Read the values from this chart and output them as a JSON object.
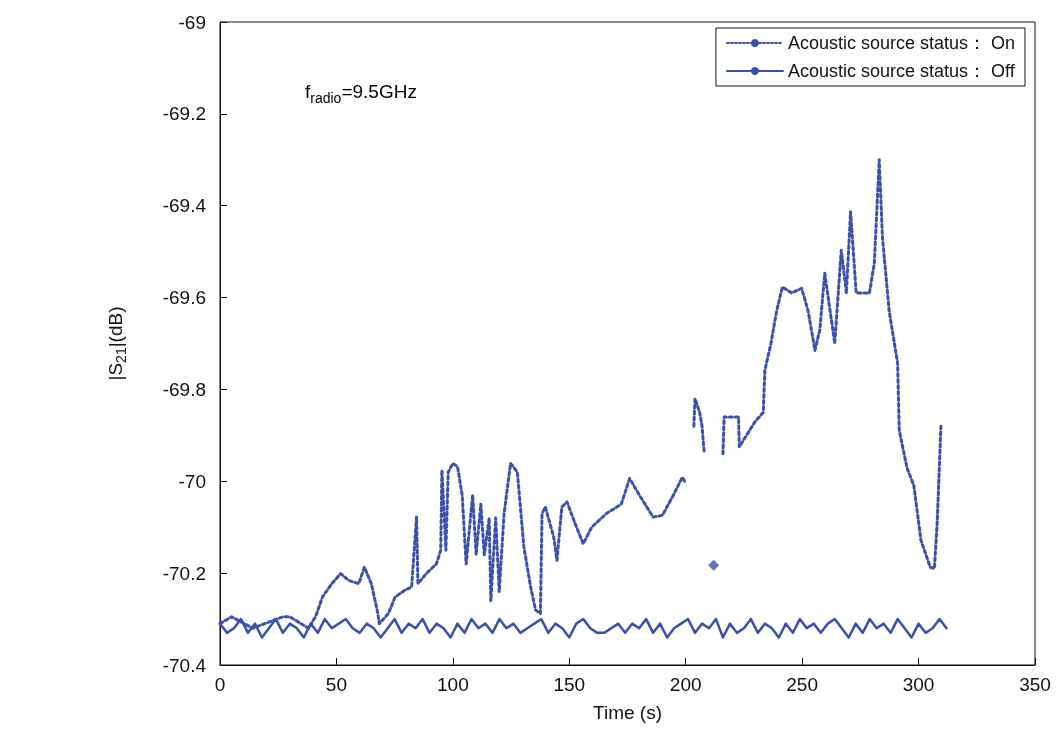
{
  "chart_data": {
    "type": "line",
    "xlabel": "Time (s)",
    "ylabel": "|S$_{21}$|(dB)",
    "annotations": [
      "f$_{radio}$=9.5GHz"
    ],
    "xlim": [
      0,
      350
    ],
    "xticks": [
      0,
      50,
      100,
      150,
      200,
      250,
      300,
      350
    ],
    "ylim": [
      -70.4,
      -69
    ],
    "yticks": [
      -70.4,
      -70.2,
      -70,
      -69.8,
      -69.6,
      -69.4,
      -69.2,
      -69
    ],
    "grid": false,
    "legend": "top right",
    "marker": "none",
    "series": [
      {
        "name": "Acoustic source status： On",
        "color": "#3b50aa",
        "line_style": "dotted",
        "x": [
          0,
          5,
          14,
          27,
          30,
          38,
          41,
          42.5,
          44,
          48,
          51.8,
          55.3,
          59.6,
          62,
          65,
          67.8,
          68.4,
          72.3,
          75.2,
          79.4,
          82.3,
          84.4,
          85,
          88.6,
          92.9,
          94.8,
          95.3,
          97,
          98,
          100,
          102,
          104,
          105.7,
          108.5,
          110,
          112,
          113.5,
          115.6,
          116.3,
          118.4,
          119.9,
          122,
          124.8,
          127.7,
          130.5,
          133.4,
          135.5,
          137.6,
          138.3,
          139.7,
          143.3,
          144.7,
          146.8,
          149,
          152.5,
          156,
          159.6,
          166,
          172.3,
          175.9,
          180.1,
          186,
          190,
          194.3,
          198.6,
          200,
          201,
          203.5,
          204,
          206,
          207,
          208,
          212,
          216,
          216.5,
          222.7,
          223,
          229.8,
          233.3,
          234,
          236.6,
          239,
          241.5,
          245.5,
          249.8,
          252.6,
          255.5,
          257.6,
          259.7,
          264,
          266.8,
          269,
          270.8,
          273.2,
          278.9,
          281,
          283.1,
          284.5,
          287.4,
          291,
          291.7,
          295,
          298,
          301,
          305,
          306.8,
          308,
          309.6
        ],
        "values": [
          -70.31,
          -70.295,
          -70.32,
          -70.295,
          -70.295,
          -70.32,
          -70.295,
          -70.274,
          -70.252,
          -70.223,
          -70.201,
          -70.216,
          -70.223,
          -70.187,
          -70.223,
          -70.288,
          -70.31,
          -70.288,
          -70.252,
          -70.237,
          -70.23,
          -70.078,
          -70.223,
          -70.201,
          -70.18,
          -70.15,
          -69.976,
          -70.15,
          -69.98,
          -69.961,
          -69.968,
          -70.03,
          -70.18,
          -70.03,
          -70.16,
          -70.05,
          -70.16,
          -70.08,
          -70.26,
          -70.08,
          -70.24,
          -70.07,
          -69.961,
          -69.98,
          -70.143,
          -70.23,
          -70.28,
          -70.288,
          -70.07,
          -70.056,
          -70.121,
          -70.172,
          -70.056,
          -70.045,
          -70.092,
          -70.136,
          -70.1,
          -70.07,
          -70.05,
          -69.994,
          -70.03,
          -70.078,
          -70.074,
          -70.034,
          -69.991,
          -70.005,
          null,
          -69.88,
          -69.82,
          -69.85,
          -69.88,
          -69.94,
          null,
          -69.94,
          -69.86,
          -69.86,
          -69.925,
          -69.87,
          -69.85,
          -69.758,
          -69.7,
          -69.63,
          -69.577,
          -69.59,
          -69.58,
          -69.63,
          -69.715,
          -69.67,
          -69.547,
          -69.7,
          -69.497,
          -69.59,
          -69.413,
          -69.59,
          -69.59,
          -69.525,
          -69.3,
          -69.47,
          -69.63,
          -69.743,
          -69.889,
          -69.97,
          -70.01,
          -70.128,
          -70.187,
          -70.19,
          -70.09,
          -69.88
        ]
      },
      {
        "name": "Acoustic source status： Off",
        "color": "#3b50aa",
        "line_style": "solid",
        "x": [
          0,
          3,
          6,
          9,
          12,
          15,
          18,
          21,
          24,
          27,
          30,
          33,
          36,
          39,
          42,
          45,
          48,
          51,
          54,
          57,
          60,
          63,
          66,
          69,
          72,
          75,
          78,
          81,
          84,
          87,
          90,
          93,
          96,
          99,
          102,
          105,
          108,
          111,
          114,
          117,
          120,
          123,
          126,
          129,
          132,
          135,
          138,
          141,
          144,
          147,
          150,
          153,
          156,
          159,
          162,
          165,
          168,
          171,
          174,
          177,
          180,
          183,
          186,
          189,
          192,
          195,
          198,
          201,
          204,
          207,
          210,
          213,
          216,
          219,
          222,
          225,
          228,
          231,
          234,
          237,
          240,
          243,
          246,
          249,
          252,
          255,
          258,
          261,
          264,
          267,
          270,
          273,
          276,
          279,
          282,
          285,
          288,
          291,
          294,
          297,
          300,
          303,
          306,
          309,
          312
        ],
        "values": [
          -70.31,
          -70.33,
          -70.32,
          -70.3,
          -70.33,
          -70.31,
          -70.34,
          -70.32,
          -70.3,
          -70.33,
          -70.31,
          -70.32,
          -70.34,
          -70.31,
          -70.33,
          -70.3,
          -70.32,
          -70.31,
          -70.3,
          -70.32,
          -70.33,
          -70.31,
          -70.32,
          -70.34,
          -70.32,
          -70.3,
          -70.33,
          -70.31,
          -70.32,
          -70.3,
          -70.33,
          -70.31,
          -70.32,
          -70.34,
          -70.31,
          -70.33,
          -70.3,
          -70.32,
          -70.31,
          -70.33,
          -70.3,
          -70.32,
          -70.31,
          -70.33,
          -70.32,
          -70.31,
          -70.3,
          -70.33,
          -70.31,
          -70.32,
          -70.34,
          -70.31,
          -70.3,
          -70.32,
          -70.33,
          -70.33,
          -70.32,
          -70.31,
          -70.33,
          -70.31,
          -70.32,
          -70.3,
          -70.33,
          -70.31,
          -70.34,
          -70.32,
          -70.31,
          -70.3,
          -70.33,
          -70.31,
          -70.32,
          -70.3,
          -70.34,
          -70.31,
          -70.33,
          -70.32,
          -70.3,
          -70.33,
          -70.31,
          -70.32,
          -70.34,
          -70.31,
          -70.33,
          -70.3,
          -70.32,
          -70.31,
          -70.33,
          -70.31,
          -70.3,
          -70.32,
          -70.34,
          -70.31,
          -70.33,
          -70.3,
          -70.32,
          -70.31,
          -70.33,
          -70.3,
          -70.32,
          -70.34,
          -70.31,
          -70.33,
          -70.32,
          -70.3,
          -70.32
        ]
      },
      {
        "type": "scatter",
        "color": "#3b50aa",
        "marker": "diamond",
        "x": [
          212
        ],
        "values": [
          -70.183
        ]
      }
    ]
  }
}
